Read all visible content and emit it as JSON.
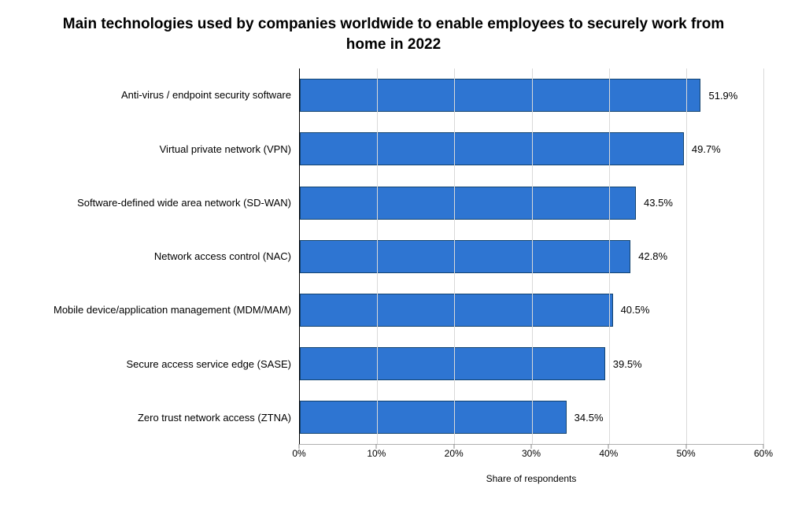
{
  "title": "Main technologies used by companies worldwide to enable employees to securely work from home in 2022",
  "title_fontsize": 19,
  "chart": {
    "type": "bar-horizontal",
    "x_axis_label": "Share of respondents",
    "xlim": [
      0,
      60
    ],
    "xtick_step": 10,
    "xticks": [
      "0%",
      "10%",
      "20%",
      "30%",
      "40%",
      "50%",
      "60%"
    ],
    "bar_color": "#2e75d2",
    "bar_border_color": "#13436f",
    "grid_color": "#d9d9d9",
    "axis_color": "#000000",
    "background_color": "#ffffff",
    "label_fontsize": 13,
    "tick_fontsize": 12,
    "value_fontsize": 13,
    "categories": [
      "Anti-virus / endpoint security software",
      "Virtual private network (VPN)",
      "Software-defined wide area network (SD-WAN)",
      "Network access control (NAC)",
      "Mobile device/application management (MDM/MAM)",
      "Secure access service edge (SASE)",
      "Zero trust network access (ZTNA)"
    ],
    "values": [
      51.9,
      49.7,
      43.5,
      42.8,
      40.5,
      39.5,
      34.5
    ],
    "value_labels": [
      "51.9%",
      "49.7%",
      "43.5%",
      "42.8%",
      "40.5%",
      "39.5%",
      "34.5%"
    ]
  }
}
